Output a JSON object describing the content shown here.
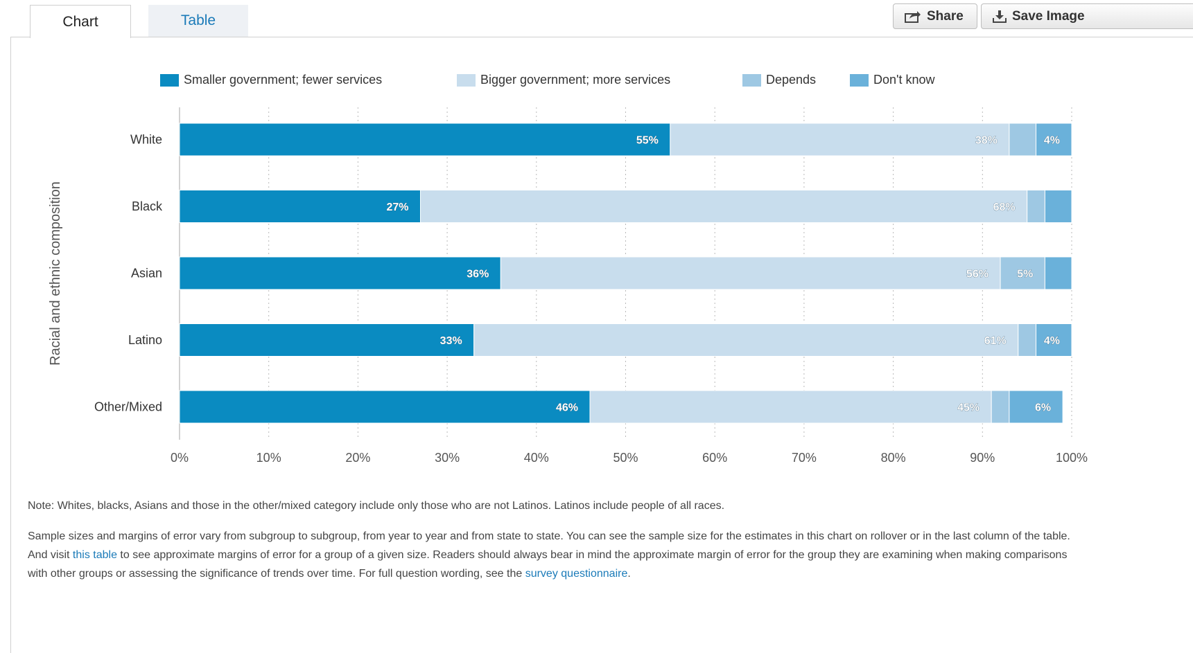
{
  "tabs": {
    "chart": "Chart",
    "table": "Table"
  },
  "toolbar": {
    "share_label": "Share",
    "save_label": "Save Image"
  },
  "colors": {
    "smaller": "#0a8bc1",
    "bigger": "#c8dded",
    "depends": "#9ec8e3",
    "dont_know": "#6ab1da"
  },
  "chart_data": {
    "type": "bar",
    "orientation": "horizontal",
    "stacked": true,
    "ylabel": "Racial and ethnic composition",
    "categories": [
      "White",
      "Black",
      "Asian",
      "Latino",
      "Other/Mixed"
    ],
    "series": [
      {
        "name": "Smaller government; fewer services",
        "values": [
          55,
          27,
          36,
          33,
          46
        ],
        "labels": [
          "55%",
          "27%",
          "36%",
          "33%",
          "46%"
        ]
      },
      {
        "name": "Bigger government; more services",
        "values": [
          38,
          68,
          56,
          61,
          45
        ],
        "labels": [
          "38%",
          "68%",
          "56%",
          "61%",
          "45%"
        ]
      },
      {
        "name": "Depends",
        "values": [
          3,
          2,
          5,
          2,
          2
        ],
        "labels": [
          "",
          "",
          "5%",
          "",
          ""
        ]
      },
      {
        "name": "Don't know",
        "values": [
          4,
          3,
          3,
          4,
          6
        ],
        "labels": [
          "4%",
          "",
          "",
          "4%",
          "6%"
        ]
      }
    ],
    "xlim": [
      0,
      100
    ],
    "xticks": [
      "0%",
      "10%",
      "20%",
      "30%",
      "40%",
      "50%",
      "60%",
      "70%",
      "80%",
      "90%",
      "100%"
    ],
    "legend": "top",
    "grid": "vertical dotted"
  },
  "notes": {
    "note1": "Note: Whites, blacks, Asians and those in the other/mixed category include only those who are not Latinos. Latinos include people of all races.",
    "p2_a": "Sample sizes and margins of error vary from subgroup to subgroup, from year to year and from state to state. You can see the sample size for the estimates in this chart on rollover or in the last column of the table. And visit ",
    "p2_link1": "this table",
    "p2_b": " to see approximate margins of error for a group of a given size. Readers should always bear in mind the approximate margin of error for the group they are examining when making comparisons with other groups or assessing the significance of trends over time. For full question wording, see the ",
    "p2_link2": "survey questionnaire",
    "p2_c": "."
  }
}
